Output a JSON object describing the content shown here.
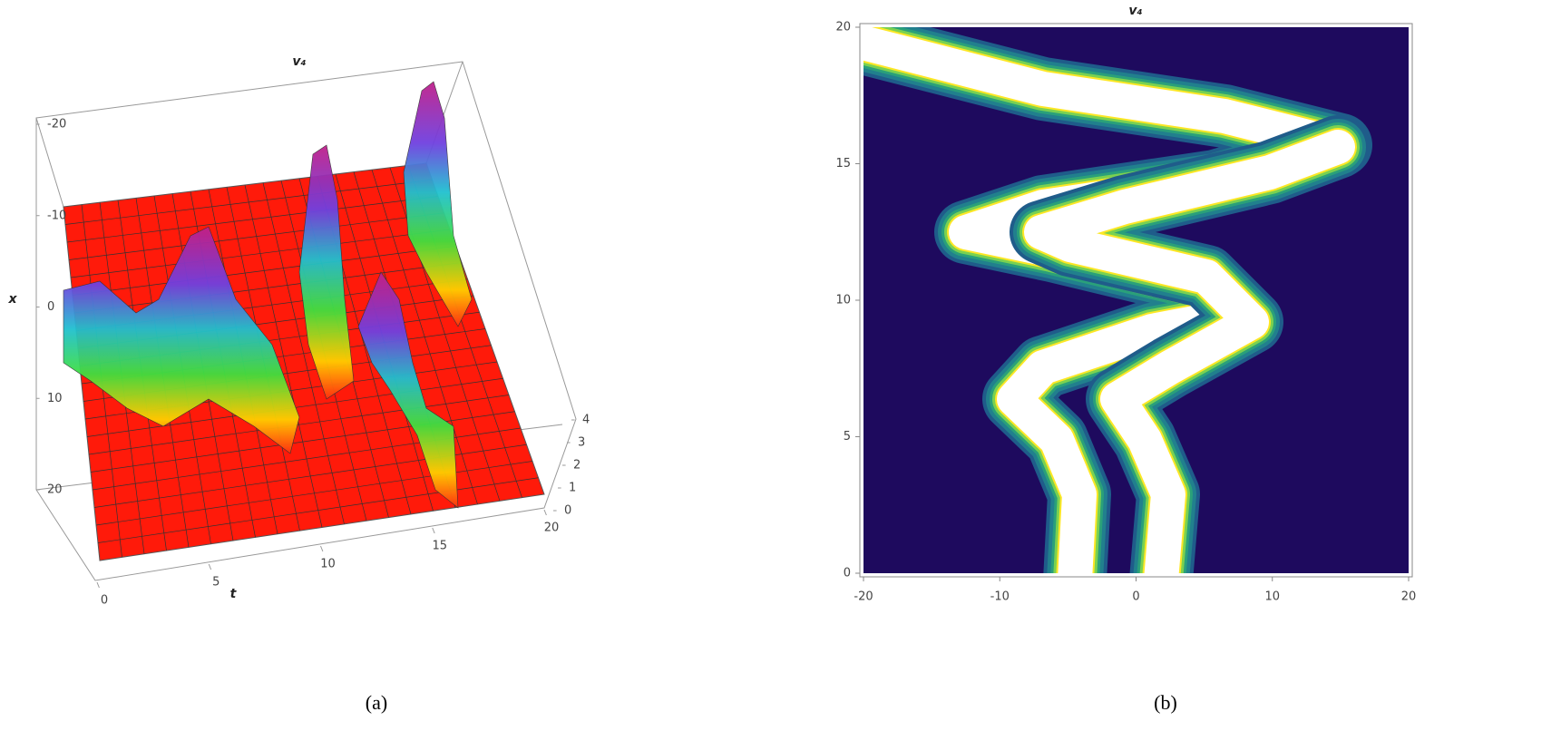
{
  "chart_data": [
    {
      "type": "surface3d",
      "title": "v₄",
      "caption": "(a)",
      "xlabel": "t",
      "xlim": [
        0,
        20
      ],
      "xticks": [
        0,
        5,
        10,
        15,
        20
      ],
      "ylabel": "x",
      "ylim": [
        -20,
        20
      ],
      "yticks": [
        -20,
        -10,
        0,
        10,
        20
      ],
      "zlim": [
        0,
        4
      ],
      "zticks": [
        0,
        1,
        2,
        3,
        4
      ],
      "color": "#ff1a0a"
    },
    {
      "type": "contour",
      "title": "v₄",
      "caption": "(b)",
      "xlim": [
        -20,
        20
      ],
      "xticks": [
        -20,
        -10,
        0,
        10,
        20
      ],
      "ylim": [
        0,
        20
      ],
      "yticks": [
        0,
        5,
        10,
        15,
        20
      ],
      "color": "#1e0a5e"
    }
  ]
}
